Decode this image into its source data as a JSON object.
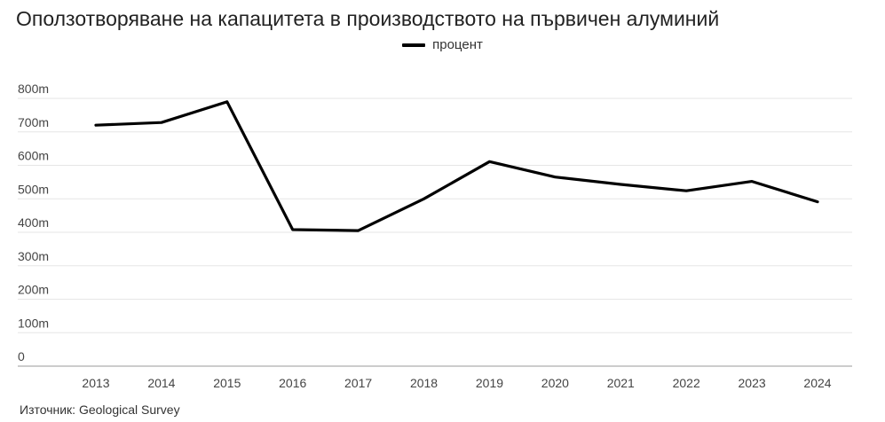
{
  "chart_data": {
    "type": "line",
    "title": "Оползотворяване на капацитета в производството на първичен алуминий",
    "source": "Източник: Geological Survey",
    "x": [
      "2013",
      "2014",
      "2015",
      "2016",
      "2017",
      "2018",
      "2019",
      "2020",
      "2021",
      "2022",
      "2023",
      "2024"
    ],
    "series": [
      {
        "name": "процент",
        "color": "#000000",
        "values": [
          720,
          728,
          790,
          408,
          405,
          500,
          611,
          565,
          543,
          524,
          552,
          491
        ]
      }
    ],
    "y_ticks": [
      "0",
      "100m",
      "200m",
      "300m",
      "400m",
      "500m",
      "600m",
      "700m",
      "800m"
    ],
    "ylim": [
      0,
      800
    ],
    "grid": true,
    "legend_position": "top-center"
  }
}
